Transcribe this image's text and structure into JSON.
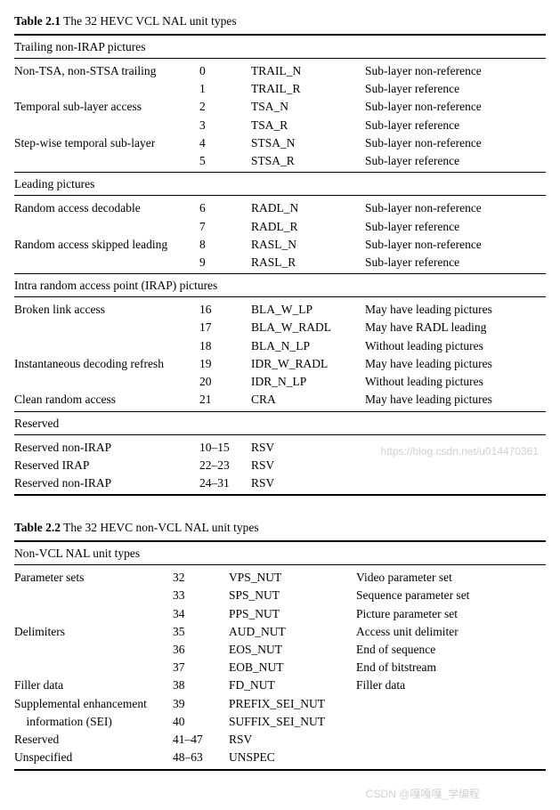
{
  "table1": {
    "label": "Table 2.1",
    "title": "The 32 HEVC VCL NAL unit types",
    "sections": [
      {
        "header": "Trailing non-IRAP pictures",
        "rows": [
          {
            "name": "Non-TSA, non-STSA trailing",
            "code": "0",
            "sym": "TRAIL_N",
            "desc": "Sub-layer non-reference"
          },
          {
            "name": "",
            "code": "1",
            "sym": "TRAIL_R",
            "desc": "Sub-layer reference"
          },
          {
            "name": "Temporal sub-layer access",
            "code": "2",
            "sym": "TSA_N",
            "desc": "Sub-layer non-reference"
          },
          {
            "name": "",
            "code": "3",
            "sym": "TSA_R",
            "desc": "Sub-layer reference"
          },
          {
            "name": "Step-wise temporal sub-layer",
            "code": "4",
            "sym": "STSA_N",
            "desc": "Sub-layer non-reference"
          },
          {
            "name": "",
            "code": "5",
            "sym": "STSA_R",
            "desc": "Sub-layer reference"
          }
        ]
      },
      {
        "header": "Leading pictures",
        "rows": [
          {
            "name": "Random access decodable",
            "code": "6",
            "sym": "RADL_N",
            "desc": "Sub-layer non-reference"
          },
          {
            "name": "",
            "code": "7",
            "sym": "RADL_R",
            "desc": "Sub-layer reference"
          },
          {
            "name": "Random access skipped leading",
            "code": "8",
            "sym": "RASL_N",
            "desc": "Sub-layer non-reference"
          },
          {
            "name": "",
            "code": "9",
            "sym": "RASL_R",
            "desc": "Sub-layer reference"
          }
        ]
      },
      {
        "header": "Intra random access point (IRAP) pictures",
        "rows": [
          {
            "name": "Broken link access",
            "code": "16",
            "sym": "BLA_W_LP",
            "desc": "May have leading pictures"
          },
          {
            "name": "",
            "code": "17",
            "sym": "BLA_W_RADL",
            "desc": "May have RADL leading"
          },
          {
            "name": "",
            "code": "18",
            "sym": "BLA_N_LP",
            "desc": "Without leading pictures"
          },
          {
            "name": "Instantaneous decoding refresh",
            "code": "19",
            "sym": "IDR_W_RADL",
            "desc": "May have leading pictures"
          },
          {
            "name": "",
            "code": "20",
            "sym": "IDR_N_LP",
            "desc": "Without leading pictures"
          },
          {
            "name": "Clean random access",
            "code": "21",
            "sym": "CRA",
            "desc": "May have leading pictures"
          }
        ]
      },
      {
        "header": "Reserved",
        "rows": [
          {
            "name": "Reserved non-IRAP",
            "code": "10–15",
            "sym": "RSV",
            "desc": ""
          },
          {
            "name": "Reserved IRAP",
            "code": "22–23",
            "sym": "RSV",
            "desc": ""
          },
          {
            "name": "Reserved non-IRAP",
            "code": "24–31",
            "sym": "RSV",
            "desc": ""
          }
        ]
      }
    ]
  },
  "table2": {
    "label": "Table 2.2",
    "title": "The 32 HEVC non-VCL NAL unit types",
    "sections": [
      {
        "header": "Non-VCL NAL unit types",
        "rows": [
          {
            "name": "Parameter sets",
            "code": "32",
            "sym": "VPS_NUT",
            "desc": "Video parameter set"
          },
          {
            "name": "",
            "code": "33",
            "sym": "SPS_NUT",
            "desc": "Sequence parameter set"
          },
          {
            "name": "",
            "code": "34",
            "sym": "PPS_NUT",
            "desc": "Picture parameter set"
          },
          {
            "name": "Delimiters",
            "code": "35",
            "sym": "AUD_NUT",
            "desc": "Access unit delimiter"
          },
          {
            "name": "",
            "code": "36",
            "sym": "EOS_NUT",
            "desc": "End of sequence"
          },
          {
            "name": "",
            "code": "37",
            "sym": "EOB_NUT",
            "desc": "End of bitstream"
          },
          {
            "name": "Filler data",
            "code": "38",
            "sym": "FD_NUT",
            "desc": "Filler data"
          },
          {
            "name": "Supplemental enhancement",
            "code": "39",
            "sym": "PREFIX_SEI_NUT",
            "desc": ""
          },
          {
            "name": " information (SEI)",
            "code": "40",
            "sym": "SUFFIX_SEI_NUT",
            "desc": ""
          },
          {
            "name": "Reserved",
            "code": "41–47",
            "sym": "RSV",
            "desc": ""
          },
          {
            "name": "Unspecified",
            "code": "48–63",
            "sym": "UNSPEC",
            "desc": ""
          }
        ]
      }
    ]
  },
  "watermarks": {
    "w1": "https://blog.csdn.net/u014470361",
    "w2": "CSDN @嘎嘎嘎_学编程"
  }
}
